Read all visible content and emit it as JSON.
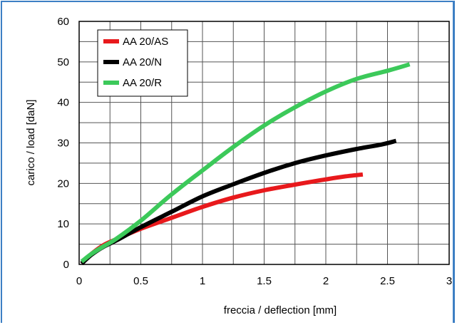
{
  "chart_data": {
    "type": "line",
    "title": "",
    "xlabel": "freccia / deflection [mm]",
    "ylabel": "carico / load [daN]",
    "xlim": [
      0,
      3
    ],
    "ylim": [
      0,
      60
    ],
    "xticks": [
      0,
      0.5,
      1,
      1.5,
      2,
      2.5,
      3
    ],
    "xtick_labels": [
      "0",
      "0.5",
      "1",
      "1.5",
      "2",
      "2.5",
      "3"
    ],
    "yticks": [
      0,
      10,
      20,
      30,
      40,
      50,
      60
    ],
    "ytick_labels": [
      "0",
      "10",
      "20",
      "30",
      "40",
      "50",
      "60"
    ],
    "grid": true,
    "legend_position": "top-left",
    "series": [
      {
        "name": "AA 20/AS",
        "color": "#e8191c",
        "x": [
          0.02,
          0.1,
          0.2,
          0.3,
          0.5,
          0.75,
          1.0,
          1.25,
          1.5,
          1.75,
          2.0,
          2.15,
          2.3
        ],
        "y": [
          0.2,
          2.6,
          4.8,
          6.2,
          8.8,
          11.5,
          14.2,
          16.5,
          18.3,
          19.7,
          21.0,
          21.7,
          22.2
        ]
      },
      {
        "name": "AA 20/N",
        "color": "#000000",
        "x": [
          0.02,
          0.1,
          0.2,
          0.3,
          0.5,
          0.75,
          1.0,
          1.25,
          1.5,
          1.75,
          2.0,
          2.25,
          2.45,
          2.57
        ],
        "y": [
          0.2,
          2.4,
          4.4,
          5.9,
          9.2,
          13.0,
          16.8,
          19.8,
          22.6,
          25.0,
          26.9,
          28.5,
          29.6,
          30.5
        ]
      },
      {
        "name": "AA 20/R",
        "color": "#3cc95a",
        "x": [
          0.02,
          0.1,
          0.2,
          0.3,
          0.5,
          0.75,
          1.0,
          1.25,
          1.5,
          1.75,
          2.0,
          2.25,
          2.5,
          2.68
        ],
        "y": [
          0.7,
          2.6,
          4.5,
          6.3,
          10.8,
          17.3,
          23.2,
          29.0,
          34.3,
          38.8,
          42.7,
          45.8,
          47.8,
          49.4
        ]
      }
    ]
  }
}
